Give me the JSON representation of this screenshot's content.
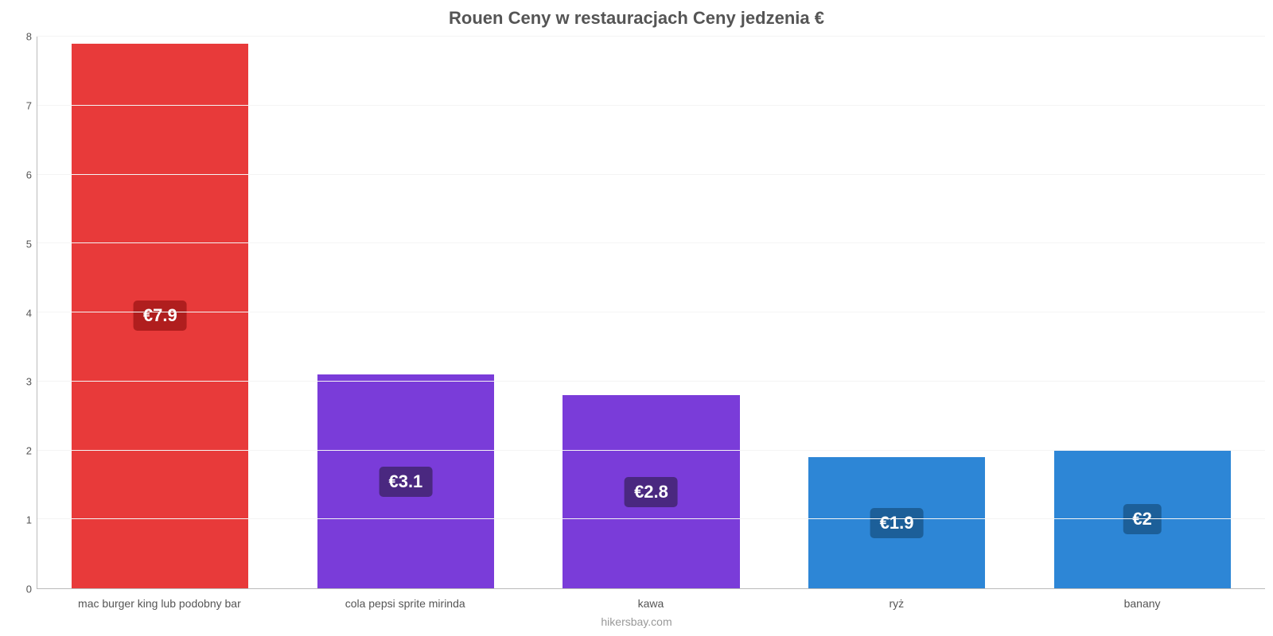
{
  "chart": {
    "type": "bar",
    "title": "Rouen Ceny w restauracjach Ceny jedzenia €",
    "title_fontsize": 22,
    "title_color": "#555555",
    "categories": [
      "mac burger king lub podobny bar",
      "cola pepsi sprite mirinda",
      "kawa",
      "ryż",
      "banany"
    ],
    "values": [
      7.9,
      3.1,
      2.8,
      1.9,
      2.0
    ],
    "value_labels": [
      "€7.9",
      "€3.1",
      "€2.8",
      "€1.9",
      "€2"
    ],
    "bar_colors": [
      "#e83a3a",
      "#7a3cd9",
      "#7a3cd9",
      "#2d86d6",
      "#2d86d6"
    ],
    "badge_colors": [
      "#b01e1e",
      "#4a2880",
      "#4a2880",
      "#1c5f99",
      "#1c5f99"
    ],
    "badge_fontsize": 22,
    "ylim": [
      0,
      8
    ],
    "ytick_step": 1,
    "y_ticks": [
      "0",
      "1",
      "2",
      "3",
      "4",
      "5",
      "6",
      "7",
      "8"
    ],
    "bar_width_pct": 72,
    "background_color": "#ffffff",
    "grid_color": "#f4f4f4",
    "axis_color": "#bbbbbb",
    "label_color": "#555555",
    "label_fontsize": 14,
    "tick_fontsize": 13
  },
  "footer": {
    "text": "hikersbay.com",
    "color": "#999999",
    "fontsize": 14
  }
}
